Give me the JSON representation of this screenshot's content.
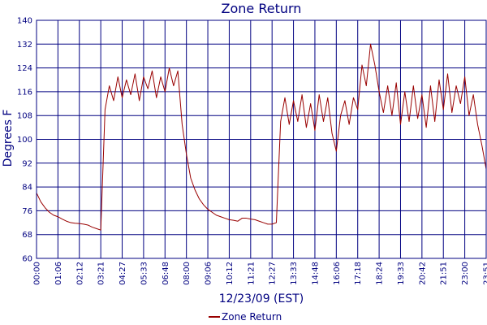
{
  "chart_data": {
    "type": "line",
    "title": "Zone Return",
    "xlabel": "12/23/09 (EST)",
    "ylabel": "Degrees F",
    "ylim": [
      60,
      140
    ],
    "y_ticks": [
      60,
      68,
      76,
      84,
      92,
      100,
      108,
      116,
      124,
      132,
      140
    ],
    "x_ticks": [
      "00:00",
      "01:06",
      "02:12",
      "03:21",
      "04:27",
      "05:33",
      "06:48",
      "08:00",
      "09:06",
      "10:12",
      "11:21",
      "12:27",
      "13:33",
      "14:48",
      "16:06",
      "17:18",
      "18:24",
      "19:33",
      "20:42",
      "21:51",
      "23:00",
      "23:51"
    ],
    "grid": true,
    "legend_position": "bottom-center",
    "colors": {
      "series": "#990000",
      "grid": "#000080",
      "text": "#000080"
    },
    "series": [
      {
        "name": "Zone Return",
        "values": [
          82,
          79,
          77,
          75.5,
          74.5,
          74,
          73.2,
          72.5,
          72,
          71.8,
          71.7,
          71.5,
          71.2,
          70.5,
          70,
          69.5,
          110,
          118,
          113,
          121,
          114,
          120,
          115,
          122,
          113,
          121,
          117,
          123,
          114,
          121,
          116,
          124,
          118,
          123,
          105,
          95,
          87,
          83,
          80,
          78,
          76.5,
          75.5,
          74.5,
          74,
          73.5,
          73,
          72.8,
          72.5,
          73.5,
          73.5,
          73.2,
          73,
          72.5,
          72,
          71.5,
          71.5,
          72,
          106,
          114,
          105,
          113,
          106,
          115,
          104,
          112,
          103,
          115,
          106,
          114,
          102,
          96,
          108,
          113,
          105,
          114,
          110,
          125,
          118,
          132,
          125,
          116,
          109,
          118,
          108,
          119,
          105,
          116,
          106,
          118,
          107,
          115,
          104,
          118,
          106,
          120,
          110,
          122,
          109,
          118,
          112,
          121,
          108,
          115,
          105,
          98,
          90
        ]
      }
    ]
  }
}
